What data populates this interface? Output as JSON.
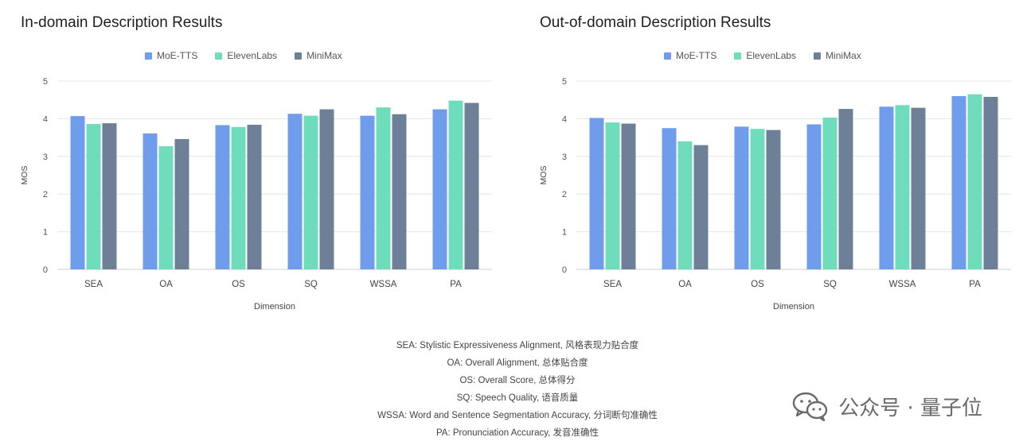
{
  "colors": {
    "MoE-TTS": "#6f9ceb",
    "ElevenLabs": "#6fdcbc",
    "MiniMax": "#6e7f98",
    "grid": "#e6e6e6",
    "axis": "#cfcfcf"
  },
  "chart_data": [
    {
      "type": "bar",
      "title": "In-domain Description Results",
      "categories": [
        "SEA",
        "OA",
        "OS",
        "SQ",
        "WSSA",
        "PA"
      ],
      "series": [
        {
          "name": "MoE-TTS",
          "values": [
            4.07,
            3.61,
            3.83,
            4.13,
            4.08,
            4.25
          ]
        },
        {
          "name": "ElevenLabs",
          "values": [
            3.86,
            3.27,
            3.78,
            4.08,
            4.3,
            4.48
          ]
        },
        {
          "name": "MiniMax",
          "values": [
            3.88,
            3.46,
            3.84,
            4.25,
            4.12,
            4.42
          ]
        }
      ],
      "xlabel": "Dimension",
      "ylabel": "MOS",
      "ylim": [
        0,
        5
      ],
      "yticks": [
        "0",
        "1",
        "2",
        "3",
        "4",
        "5"
      ],
      "legend_position": "top-center"
    },
    {
      "type": "bar",
      "title": "Out-of-domain Description Results",
      "categories": [
        "SEA",
        "OA",
        "OS",
        "SQ",
        "WSSA",
        "PA"
      ],
      "series": [
        {
          "name": "MoE-TTS",
          "values": [
            4.02,
            3.75,
            3.79,
            3.85,
            4.32,
            4.6
          ]
        },
        {
          "name": "ElevenLabs",
          "values": [
            3.9,
            3.4,
            3.73,
            4.03,
            4.36,
            4.65
          ]
        },
        {
          "name": "MiniMax",
          "values": [
            3.87,
            3.3,
            3.7,
            4.26,
            4.29,
            4.58
          ]
        }
      ],
      "xlabel": "Dimension",
      "ylabel": "MOS",
      "ylim": [
        0,
        5
      ],
      "yticks": [
        "0",
        "1",
        "2",
        "3",
        "4",
        "5"
      ],
      "legend_position": "top-center"
    }
  ],
  "footnotes": [
    "SEA: Stylistic Expressiveness Alignment, 风格表现力贴合度",
    "OA: Overall Alignment, 总体贴合度",
    "OS: Overall Score, 总体得分",
    "SQ: Speech Quality, 语音质量",
    "WSSA: Word and Sentence Segmentation Accuracy, 分词断句准确性",
    "PA: Pronunciation Accuracy, 发音准确性"
  ],
  "watermark": {
    "text": "公众号 · 量子位",
    "icon": "wechat-icon"
  }
}
